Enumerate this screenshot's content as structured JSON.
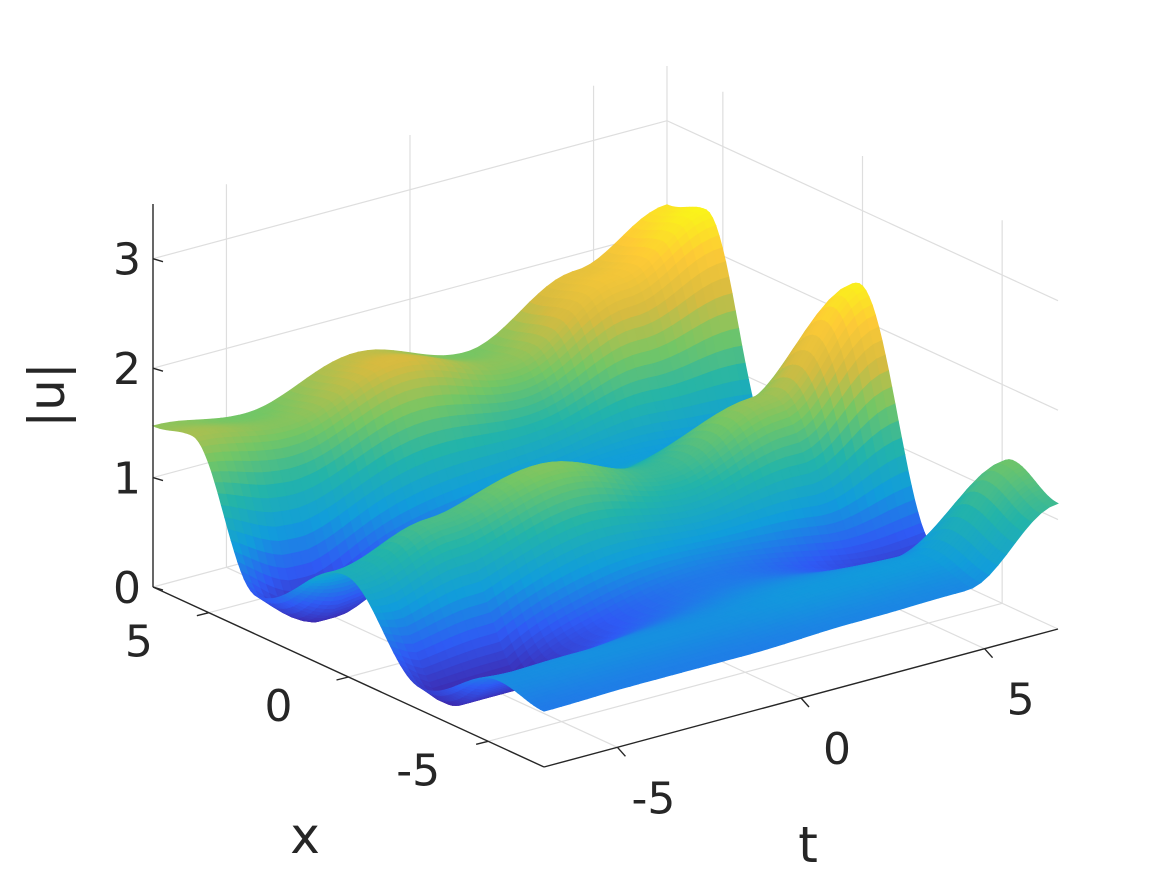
{
  "chart_data": {
    "type": "surface",
    "xlabel": "x",
    "ylabel": "t",
    "zlabel": "|u|",
    "xlim": [
      -7,
      7
    ],
    "ylim": [
      -7,
      7
    ],
    "zlim": [
      0,
      3.5
    ],
    "x_ticks": [
      -5,
      0,
      5
    ],
    "y_ticks": [
      -5,
      0,
      5
    ],
    "z_ticks": [
      0,
      1,
      2,
      3
    ],
    "x_tick_labels": [
      "-5",
      "0",
      "5"
    ],
    "y_tick_labels": [
      "-5",
      "0",
      "5"
    ],
    "z_tick_labels": [
      "0",
      "1",
      "2",
      "3"
    ],
    "grid": true,
    "colormap": [
      "#3e26a8",
      "#2f5af4",
      "#119ddb",
      "#23b4a9",
      "#74c665",
      "#d6bb40",
      "#feca36",
      "#f9fb15"
    ],
    "ridges": [
      {
        "t": [
          -7,
          -4.5,
          -1.5,
          1.5,
          4.5,
          7
        ],
        "peak": [
          1.55,
          1.43,
          1.73,
          1.45,
          1.95,
          2.35
        ],
        "trough_t": -5.5,
        "trough": 0.0
      },
      {
        "t": [
          -7,
          -4.5,
          -1.5,
          1.5,
          4.5,
          7
        ],
        "peak": [
          0.92,
          1.2,
          1.42,
          1.12,
          1.5,
          2.32
        ],
        "trough_t": -5.5,
        "trough": 0.0
      },
      {
        "t": [
          -7,
          -4.5,
          -1.5,
          1.5,
          4.5,
          7
        ],
        "peak": [
          0.6,
          0.62,
          0.62,
          0.66,
          0.68,
          1.35
        ],
        "trough_t": -5.5,
        "trough": 0.0
      }
    ]
  }
}
